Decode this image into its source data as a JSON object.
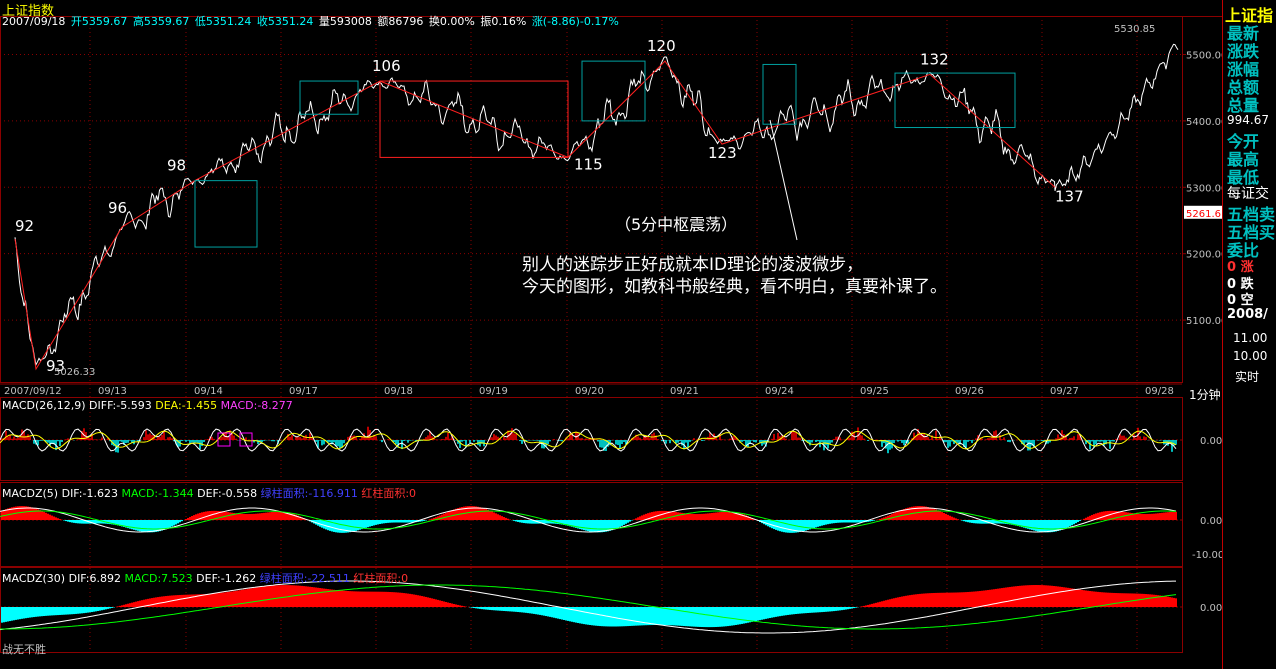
{
  "header": {
    "title": "上证指数",
    "date": "2007/09/18",
    "open": "开5359.67",
    "high": "高5359.67",
    "low": "低5351.24",
    "close": "收5351.24",
    "volume": "量593008",
    "amount": "额86796",
    "turnover": "换0.00%",
    "amplitude": "振0.16%",
    "change": "涨(-8.86)-0.17%"
  },
  "sidebar": {
    "title": "上证指",
    "labels": [
      "最新",
      "涨跌",
      "涨幅",
      "总额",
      "总量"
    ],
    "value_994": "994.67",
    "labels2": [
      "今开",
      "最高",
      "最低"
    ],
    "labels3": [
      "每证交",
      "五档卖",
      "五档买",
      "委比"
    ],
    "row_zhang": "0 涨",
    "row_die": "0 跌",
    "row_kong": "0 空",
    "year": "2008/",
    "v11": "11.00",
    "v10": "10.00",
    "realtime": "实时",
    "period": "1分钟",
    "bottom": "战无不胜"
  },
  "chart_data": [
    {
      "type": "line",
      "name": "main",
      "yticks": [
        5500.0,
        5400.0,
        5300.0,
        5200.0,
        5100.0
      ],
      "ytick_labels": [
        "5500.00",
        "5400.00",
        "5300.00",
        "5200.00",
        "5100.00"
      ],
      "ylim": [
        5026.33,
        5530.85
      ],
      "max_label": "5530.85",
      "min_label": "5026.33",
      "current_label": "5261.6",
      "x_labels": [
        "2007/09/12",
        "09/13",
        "09/14",
        "09/17",
        "09/18",
        "09/19",
        "09/20",
        "09/21",
        "09/24",
        "09/25",
        "09/26",
        "09/27",
        "09/28"
      ],
      "wave_points": [
        {
          "label": "92",
          "price": 5222
        },
        {
          "label": "93",
          "price": 5026.33
        },
        {
          "label": "96",
          "price": 5240
        },
        {
          "label": "98",
          "price": 5310
        },
        {
          "label": "106",
          "price": 5460
        },
        {
          "label": "115",
          "price": 5345
        },
        {
          "label": "120",
          "price": 5490
        },
        {
          "label": "123",
          "price": 5365
        },
        {
          "label": "132",
          "price": 5470
        },
        {
          "label": "137",
          "price": 5300
        }
      ],
      "annotations": [
        "（5分中枢震荡）",
        "别人的迷踪步正好成就本ID理论的凌波微步，",
        "今天的图形，如教科书般经典，看不明白，真要补课了。"
      ]
    },
    {
      "type": "bar",
      "name": "MACD(26,12,9)",
      "legend": [
        "MACD(26,12,9)",
        "DIFF:-5.593",
        "DEA:-1.455",
        "MACD:-8.277"
      ],
      "ytick_labels": [
        "0.00"
      ]
    },
    {
      "type": "area",
      "name": "MACDZ(5)",
      "legend": [
        "MACDZ(5)",
        "DIF:-1.623",
        "MACD:-1.344",
        "DEF:-0.558",
        "绿柱面积:-116.911",
        "红柱面积:0"
      ],
      "ytick_labels": [
        "0.00",
        "-10.00"
      ]
    },
    {
      "type": "area",
      "name": "MACDZ(30)",
      "legend": [
        "MACDZ(30)",
        "DIF:6.892",
        "MACD:7.523",
        "DEF:-1.262",
        "绿柱面积:-22.511",
        "红柱面积:0"
      ],
      "ytick_labels": [
        "0.00"
      ]
    }
  ],
  "colors": {
    "grid": "#8b0000",
    "price_line": "#ffffff",
    "wave_line": "#ff2020",
    "pivot_box_red": "#ff2020",
    "pivot_box_cyan": "#00a0a0",
    "macd_red": "#ff0000",
    "macd_cyan": "#00ffff",
    "dif_white": "#ffffff",
    "dea_yellow": "#ffff00",
    "dea_green": "#00ff00"
  }
}
